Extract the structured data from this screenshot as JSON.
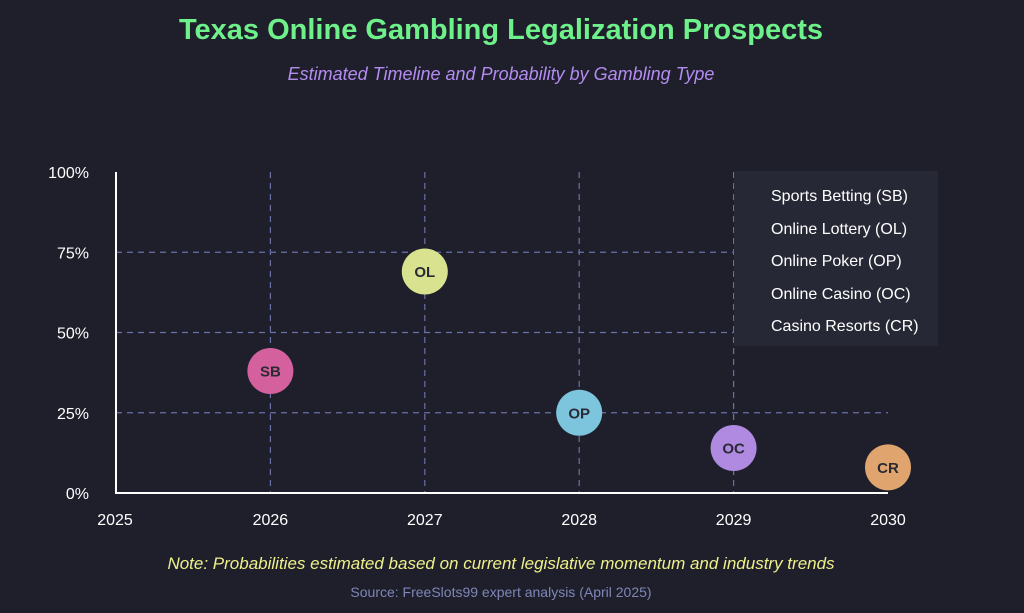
{
  "title": "Texas Online Gambling Legalization Prospects",
  "subtitle": "Estimated Timeline and Probability by Gambling Type",
  "note": "Note: Probabilities estimated based on current legislative momentum and industry trends",
  "source": "Source: FreeSlots99 expert analysis (April 2025)",
  "colors": {
    "background": "#1e1f2b",
    "title": "#6ef08a",
    "subtitle": "#b38cf0",
    "grid": "#6a70a8",
    "note": "#eef08a",
    "source": "#7f86b8"
  },
  "chart_data": {
    "type": "scatter",
    "title": "Texas Online Gambling Legalization Prospects",
    "subtitle": "Estimated Timeline and Probability by Gambling Type",
    "xlabel": "",
    "ylabel": "",
    "xlim": [
      2025,
      2030
    ],
    "ylim": [
      0,
      100
    ],
    "x_ticks": [
      "2025",
      "2026",
      "2027",
      "2028",
      "2029",
      "2030"
    ],
    "y_ticks": [
      "0%",
      "25%",
      "50%",
      "75%",
      "100%"
    ],
    "grid": true,
    "legend_position": "top-right",
    "series": [
      {
        "name": "Sports Betting (SB)",
        "label": "SB",
        "x": 2026,
        "y": 38,
        "color": "#d4619e"
      },
      {
        "name": "Online Lottery (OL)",
        "label": "OL",
        "x": 2027,
        "y": 69,
        "color": "#d9e38f"
      },
      {
        "name": "Online Poker (OP)",
        "label": "OP",
        "x": 2028,
        "y": 25,
        "color": "#7dc4dd"
      },
      {
        "name": "Online Casino (OC)",
        "label": "OC",
        "x": 2029,
        "y": 14,
        "color": "#b08ae0"
      },
      {
        "name": "Casino Resorts (CR)",
        "label": "CR",
        "x": 2030,
        "y": 8,
        "color": "#e0a56e"
      }
    ]
  }
}
